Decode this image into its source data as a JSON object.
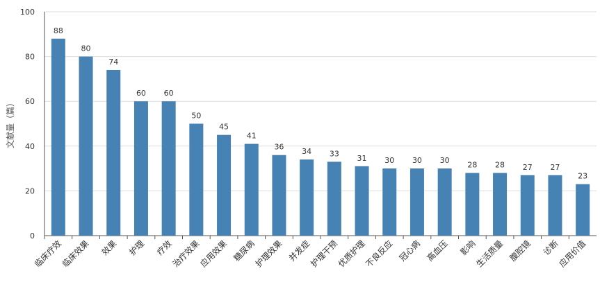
{
  "chart_data": {
    "type": "bar",
    "title": "",
    "xlabel": "",
    "ylabel": "文献量（篇）",
    "ylim": [
      0,
      100
    ],
    "yticks": [
      0,
      20,
      40,
      60,
      80,
      100
    ],
    "grid": true,
    "bar_color": "#4682b4",
    "categories": [
      "临床疗效",
      "临床效果",
      "效果",
      "护理",
      "疗效",
      "治疗效果",
      "应用效果",
      "糖尿病",
      "护理效果",
      "并发症",
      "护理干预",
      "优质护理",
      "不良反应",
      "冠心病",
      "高血压",
      "影响",
      "生活质量",
      "腹腔镜",
      "诊断",
      "应用价值"
    ],
    "values": [
      88,
      80,
      74,
      60,
      60,
      50,
      45,
      41,
      36,
      34,
      33,
      31,
      30,
      30,
      30,
      28,
      28,
      27,
      27,
      23
    ]
  }
}
